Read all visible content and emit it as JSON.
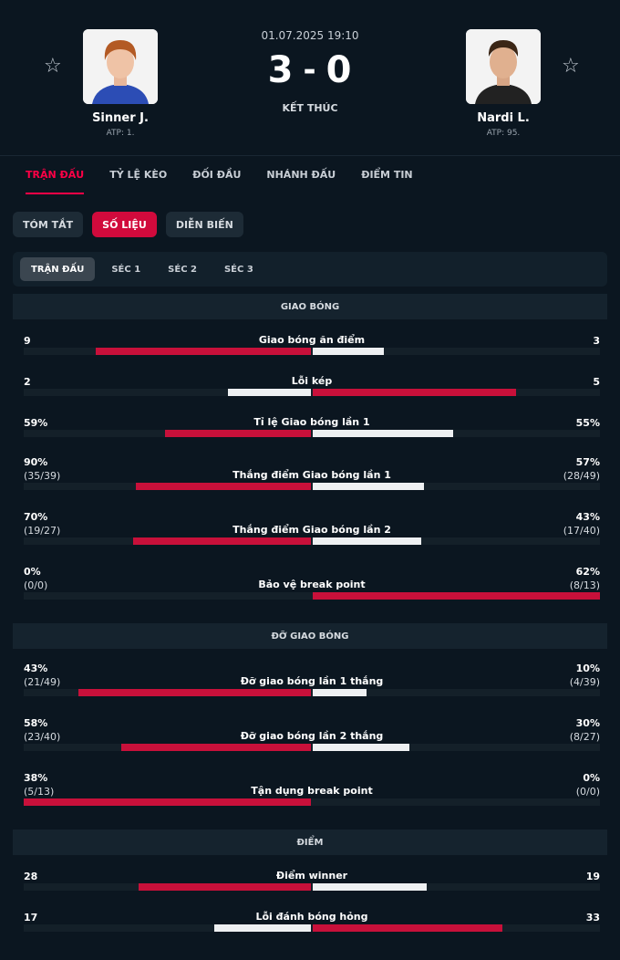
{
  "match": {
    "datetime": "01.07.2025 19:10",
    "score_home": "3",
    "score_sep": "-",
    "score_away": "0",
    "status": "KẾT THÚC",
    "home": {
      "name": "Sinner J.",
      "rank": "ATP: 1.",
      "photo_icon": "player-photo-icon",
      "hair": "#b35a24",
      "shirt": "#2c4db5"
    },
    "away": {
      "name": "Nardi L.",
      "rank": "ATP: 95.",
      "photo_icon": "player-photo-icon",
      "hair": "#3b2616",
      "shirt": "#222222"
    }
  },
  "tabs": [
    "TRẬN ĐẤU",
    "TỶ LỆ KÈO",
    "ĐỐI ĐẦU",
    "NHÁNH ĐẤU",
    "ĐIỂM TIN"
  ],
  "active_tab": 0,
  "subtabs": [
    "TÓM TẮT",
    "SỐ LIỆU",
    "DIỄN BIẾN"
  ],
  "active_subtab": 1,
  "periods": [
    "TRẬN ĐẤU",
    "SÉC 1",
    "SÉC 2",
    "SÉC 3"
  ],
  "active_period": 0,
  "colors": {
    "accent": "#ff0046",
    "bar_win": "#c8103a",
    "bar_lose": "#eef0f2",
    "background": "#0b1620"
  },
  "sections": [
    {
      "title": "GIAO BÓNG",
      "stats": [
        {
          "label": "Giao bóng ăn điểm",
          "home": "9",
          "away": "3",
          "home_share": 0.75,
          "away_share": 0.25
        },
        {
          "label": "Lỗi kép",
          "home": "2",
          "away": "5",
          "home_share": 0.29,
          "away_share": 0.71
        },
        {
          "label": "Tỉ lệ Giao bóng lần 1",
          "home": "59%",
          "away": "55%",
          "home_share": 0.51,
          "away_share": 0.49
        },
        {
          "label": "Thắng điểm Giao bóng lần 1",
          "home": "90%",
          "home_sub": "(35/39)",
          "away": "57%",
          "away_sub": "(28/49)",
          "home_share": 0.61,
          "away_share": 0.39
        },
        {
          "label": "Thắng điểm Giao bóng lần 2",
          "home": "70%",
          "home_sub": "(19/27)",
          "away": "43%",
          "away_sub": "(17/40)",
          "home_share": 0.62,
          "away_share": 0.38
        },
        {
          "label": "Bảo vệ break point",
          "home": "0%",
          "home_sub": "(0/0)",
          "away": "62%",
          "away_sub": "(8/13)",
          "home_share": 0.0,
          "away_share": 1.0
        }
      ]
    },
    {
      "title": "ĐỠ GIAO BÓNG",
      "stats": [
        {
          "label": "Đỡ giao bóng lần 1 thắng",
          "home": "43%",
          "home_sub": "(21/49)",
          "away": "10%",
          "away_sub": "(4/39)",
          "home_share": 0.81,
          "away_share": 0.19
        },
        {
          "label": "Đỡ giao bóng lần 2 thắng",
          "home": "58%",
          "home_sub": "(23/40)",
          "away": "30%",
          "away_sub": "(8/27)",
          "home_share": 0.66,
          "away_share": 0.34
        },
        {
          "label": "Tận dụng break point",
          "home": "38%",
          "home_sub": "(5/13)",
          "away": "0%",
          "away_sub": "(0/0)",
          "home_share": 1.0,
          "away_share": 0.0
        }
      ]
    },
    {
      "title": "ĐIỂM",
      "stats": [
        {
          "label": "Điểm winner",
          "home": "28",
          "away": "19",
          "home_share": 0.6,
          "away_share": 0.4
        },
        {
          "label": "Lỗi đánh bóng hỏng",
          "home": "17",
          "away": "33",
          "home_share": 0.34,
          "away_share": 0.66
        }
      ]
    }
  ]
}
